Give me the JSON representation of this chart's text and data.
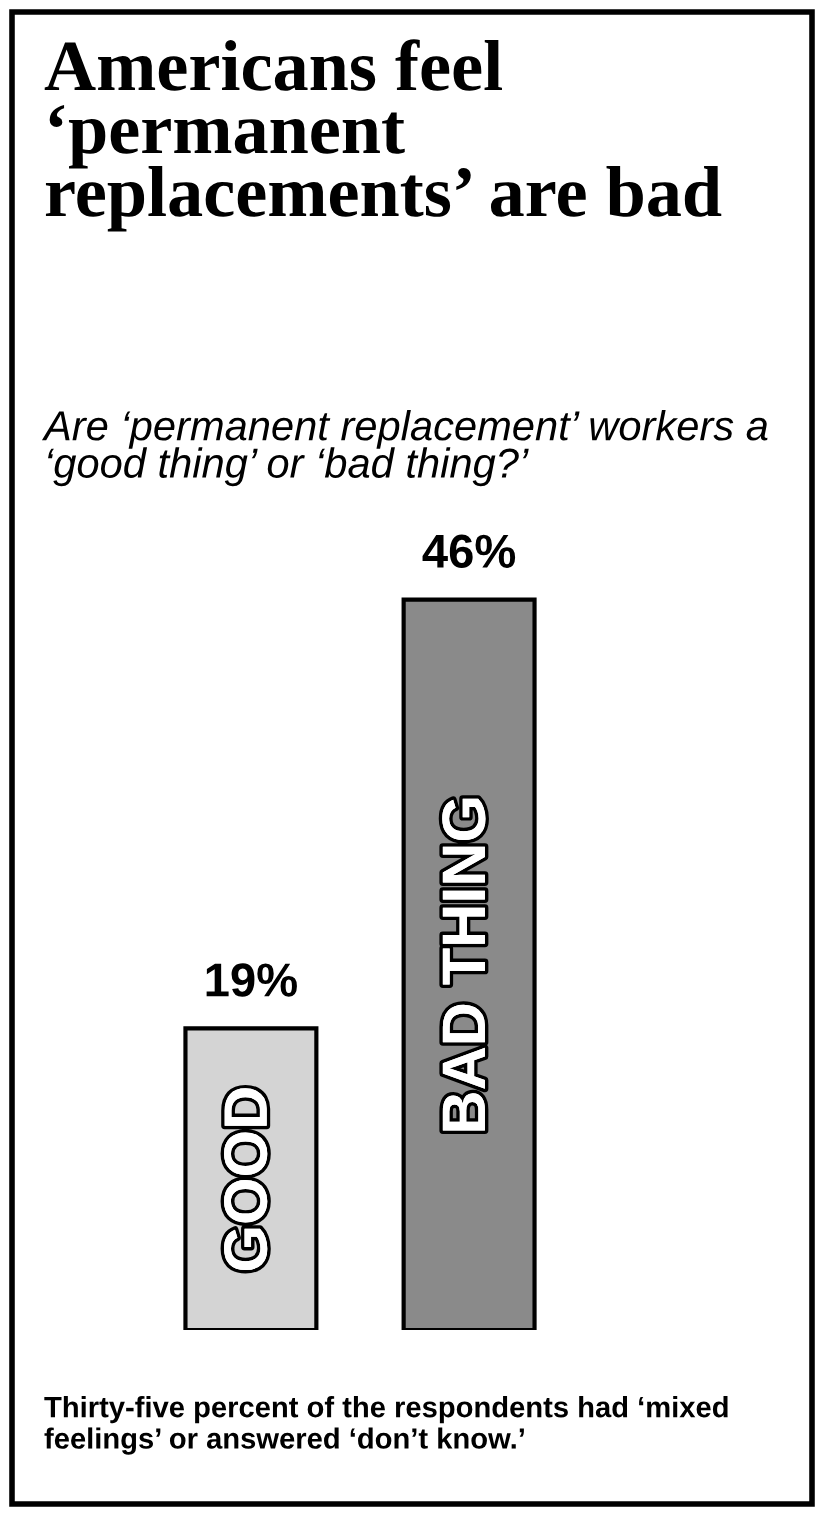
{
  "chart_data": {
    "type": "bar",
    "title": "Americans feel ‘permanent replacements’ are bad",
    "subtitle": "Are ‘permanent replacement’ workers a ‘good thing’ or ‘bad thing?’",
    "categories": [
      "GOOD",
      "BAD THING"
    ],
    "values": [
      19,
      46
    ],
    "colors": [
      "#d4d4d4",
      "#8a8a8a"
    ],
    "value_labels": [
      "19%",
      "46%"
    ],
    "annotations": [
      "Thirty-five percent of the respondents had ‘mixed feelings’ or answered ‘don’t know.’"
    ]
  }
}
